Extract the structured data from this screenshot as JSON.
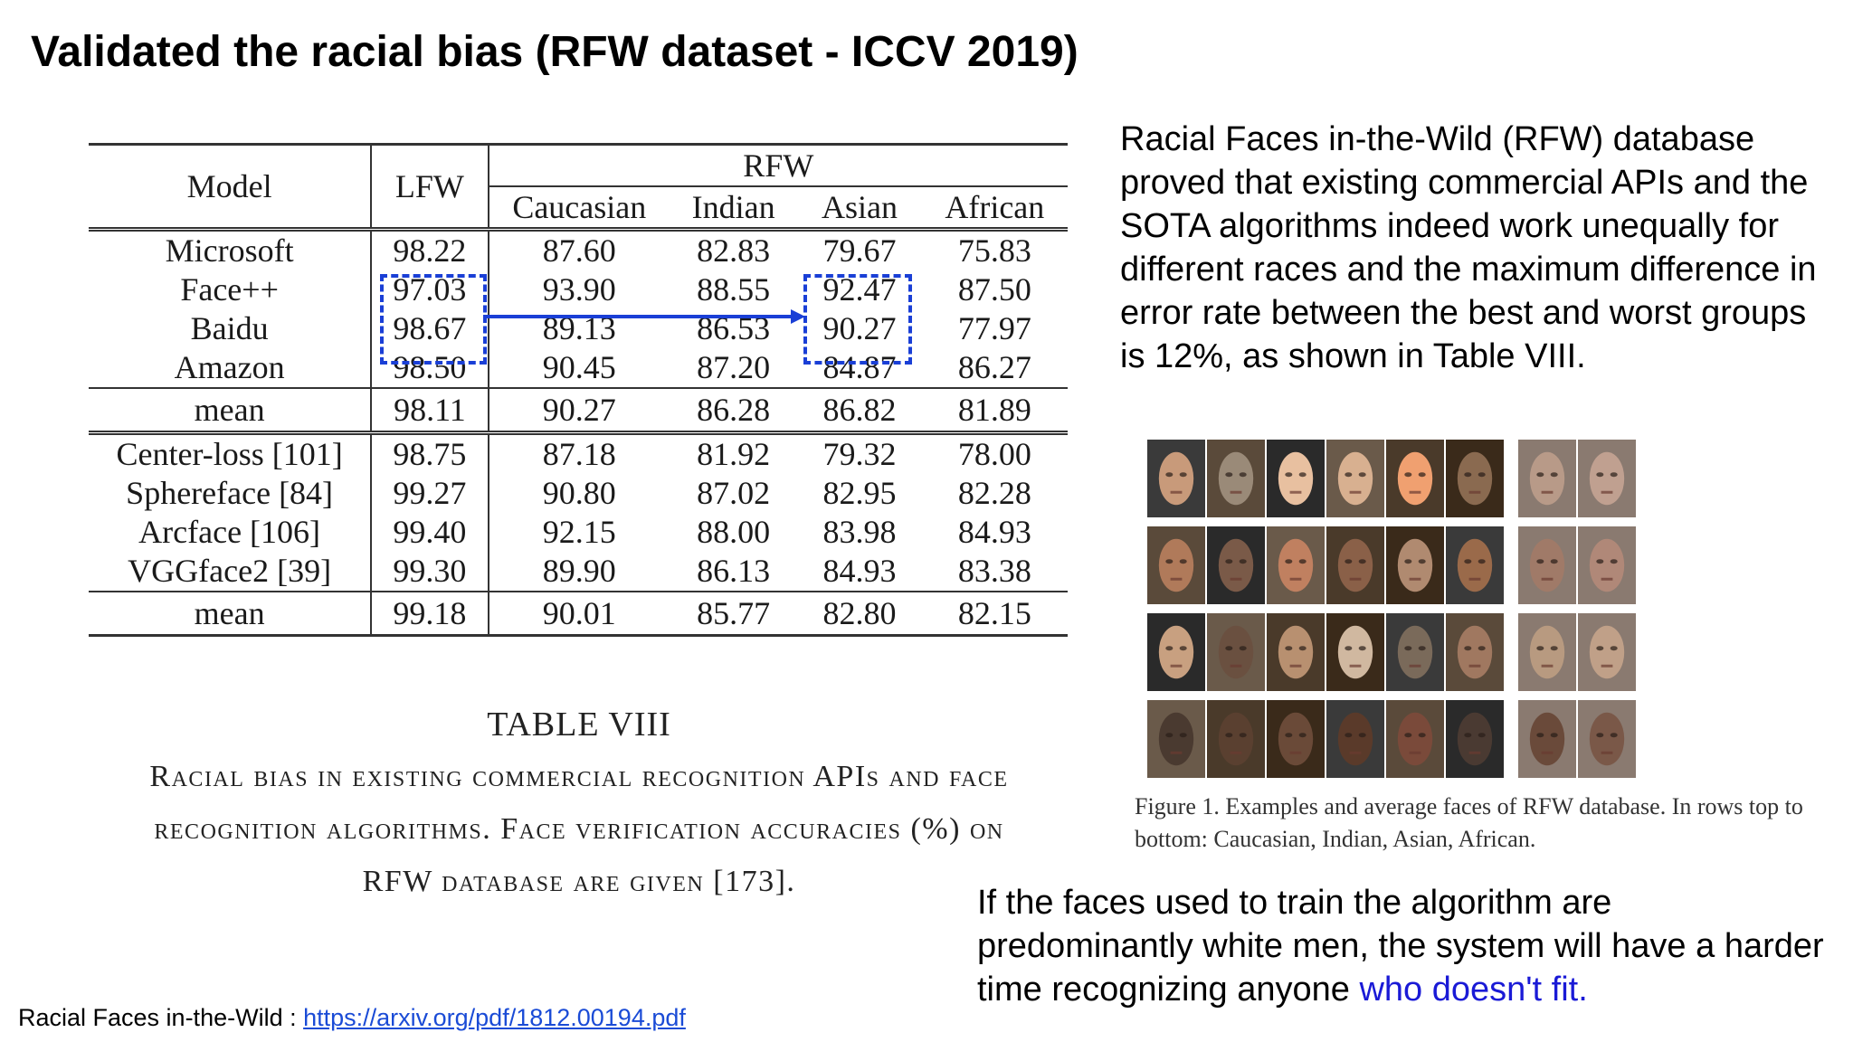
{
  "title": "Validated the racial bias (RFW dataset - ICCV 2019)",
  "table": {
    "headers": {
      "model": "Model",
      "lfw": "LFW",
      "rfw": "RFW",
      "caucasian": "Caucasian",
      "indian": "Indian",
      "asian": "Asian",
      "african": "African"
    },
    "group1": [
      {
        "model": "Microsoft",
        "lfw": "98.22",
        "caucasian": "87.60",
        "indian": "82.83",
        "asian": "79.67",
        "african": "75.83"
      },
      {
        "model": "Face++",
        "lfw": "97.03",
        "caucasian": "93.90",
        "indian": "88.55",
        "asian": "92.47",
        "african": "87.50"
      },
      {
        "model": "Baidu",
        "lfw": "98.67",
        "caucasian": "89.13",
        "indian": "86.53",
        "asian": "90.27",
        "african": "77.97"
      },
      {
        "model": "Amazon",
        "lfw": "98.50",
        "caucasian": "90.45",
        "indian": "87.20",
        "asian": "84.87",
        "african": "86.27"
      }
    ],
    "mean1": {
      "model": "mean",
      "lfw": "98.11",
      "caucasian": "90.27",
      "indian": "86.28",
      "asian": "86.82",
      "african": "81.89"
    },
    "group2": [
      {
        "model": "Center-loss [101]",
        "lfw": "98.75",
        "caucasian": "87.18",
        "indian": "81.92",
        "asian": "79.32",
        "african": "78.00"
      },
      {
        "model": "Sphereface [84]",
        "lfw": "99.27",
        "caucasian": "90.80",
        "indian": "87.02",
        "asian": "82.95",
        "african": "82.28"
      },
      {
        "model": "Arcface [106]",
        "lfw": "99.40",
        "caucasian": "92.15",
        "indian": "88.00",
        "asian": "83.98",
        "african": "84.93"
      },
      {
        "model": "VGGface2 [39]",
        "lfw": "99.30",
        "caucasian": "89.90",
        "indian": "86.13",
        "asian": "84.93",
        "african": "83.38"
      }
    ],
    "mean2": {
      "model": "mean",
      "lfw": "99.18",
      "caucasian": "90.01",
      "indian": "85.77",
      "asian": "82.80",
      "african": "82.15"
    },
    "caption_title": "TABLE VIII",
    "caption_lines": [
      "Racial bias in existing commercial recognition APIs and face",
      "recognition algorithms. Face verification accuracies (%) on",
      "RFW database are given [173]."
    ]
  },
  "description": "Racial Faces in-the-Wild (RFW) database proved that existing commercial APIs and the SOTA algorithms indeed work unequally for different races and the maximum difference in error rate between the best and worst groups is 12%, as shown in Table VIII.",
  "figure_caption": "Figure 1.  Examples and average faces of RFW database. In rows top to bottom: Caucasian, Indian, Asian, African.",
  "bottom_text": {
    "main": "If the faces used to train the algorithm are predominantly white men, the system will have a harder time recognizing anyone ",
    "highlight": "who doesn't fit."
  },
  "footer": {
    "label": "Racial Faces in-the-Wild : ",
    "link": "https://arxiv.org/pdf/1812.00194.pdf"
  },
  "colors": {
    "highlight": "#1a1ad6",
    "dash_box": "#1a3fd6",
    "link": "#1a4bd6"
  }
}
